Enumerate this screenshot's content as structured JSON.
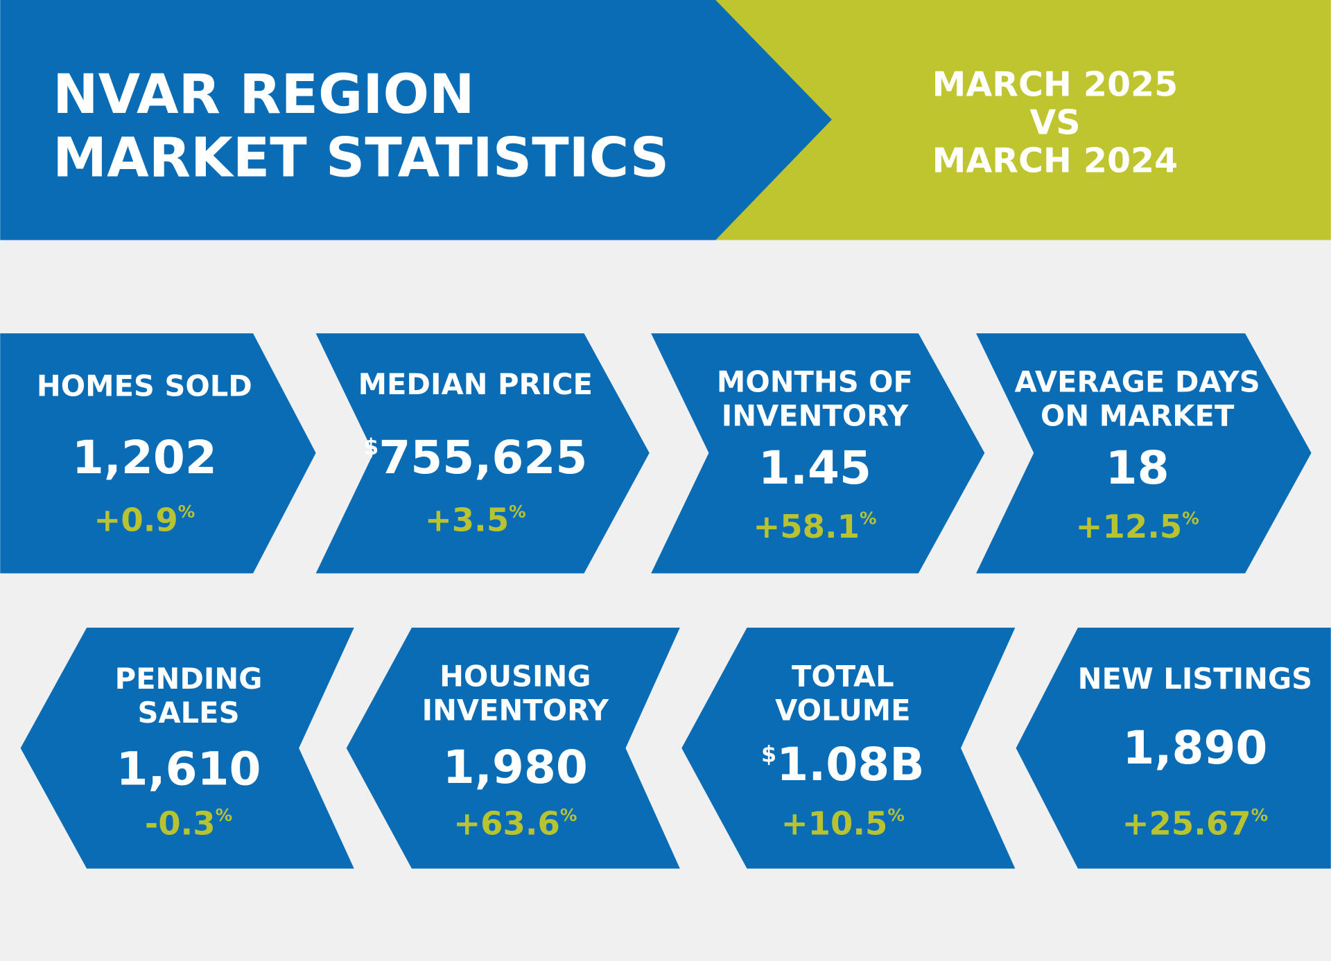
{
  "header": {
    "title": [
      "NVAR REGION",
      "MARKET STATISTICS"
    ],
    "period": [
      "MARCH 2025",
      "VS",
      "MARCH 2024"
    ]
  },
  "cards": [
    {
      "label": [
        "HOMES SOLD"
      ],
      "value": "1,202",
      "change": "+0.9",
      "unit": "%"
    },
    {
      "label": [
        "MEDIAN PRICE"
      ],
      "prefix": "$",
      "value": "755,625",
      "change": "+3.5",
      "unit": "%"
    },
    {
      "label": [
        "MONTHS OF",
        "INVENTORY"
      ],
      "value": "1.45",
      "change": "+58.1",
      "unit": "%"
    },
    {
      "label": [
        "AVERAGE DAYS",
        "ON MARKET"
      ],
      "value": "18",
      "change": "+12.5",
      "unit": "%"
    },
    {
      "label": [
        "PENDING",
        "SALES"
      ],
      "value": "1,610",
      "change": "-0.3",
      "unit": "%"
    },
    {
      "label": [
        "HOUSING",
        "INVENTORY"
      ],
      "value": "1,980",
      "change": "+63.6",
      "unit": "%"
    },
    {
      "label": [
        "TOTAL",
        "VOLUME"
      ],
      "prefix": "$",
      "value": "1.08B",
      "change": "+10.5",
      "unit": "%"
    },
    {
      "label": [
        "NEW LISTINGS"
      ],
      "value": "1,890",
      "change": "+25.67",
      "unit": "%"
    }
  ]
}
